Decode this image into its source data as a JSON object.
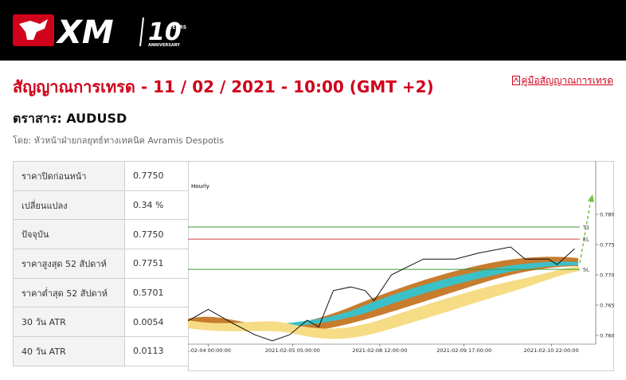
{
  "header": {
    "logo": "XM",
    "badge": "10",
    "badge_text": "YEARS",
    "badge_sub": "ANNIVERSARY"
  },
  "title": "สัญญาณการเทรด - 11 / 02 / 2021 - 10:00 (GMT +2)",
  "guide_link": "คู่มือสัญญาณการเทรด",
  "instrument": "ตราสาร: AUDUSD",
  "author": "โดย: หัวหน้าฝ่ายกลยุทธ์ทางเทคนิค Avramis Despotis",
  "table": {
    "rows": [
      [
        "ราคาปิดก่อนหน้า",
        "0.7750"
      ],
      [
        "เปลี่ยนแปลง",
        "0.34 %"
      ],
      [
        "ปัจจุบัน",
        "0.7750"
      ],
      [
        "ราคาสูงสุด 52 สัปดาห์",
        "0.7751"
      ],
      [
        "ราคาต่ำสุด 52 สัปดาห์",
        "0.5701"
      ],
      [
        "30 วัน ATR",
        "0.0054"
      ],
      [
        "40 วัน ATR",
        "0.0113"
      ]
    ]
  },
  "chart_data": {
    "type": "line",
    "annotation": "Hourly",
    "color": "#111111",
    "x": [
      -7,
      0,
      8,
      16,
      22,
      28,
      34,
      38,
      43,
      49,
      54,
      57,
      63,
      74,
      85,
      93,
      104,
      109,
      117,
      120,
      126
    ],
    "values": [
      0.7624,
      0.7643,
      0.7621,
      0.7601,
      0.7591,
      0.7601,
      0.7625,
      0.7614,
      0.7674,
      0.768,
      0.7674,
      0.7657,
      0.77,
      0.7726,
      0.7726,
      0.7736,
      0.7746,
      0.7726,
      0.7726,
      0.7717,
      0.7743
    ],
    "levels": [
      {
        "label": "T1",
        "value": 0.7779,
        "color": "#3a9a3a"
      },
      {
        "label": "EL",
        "value": 0.7759,
        "color": "#d04040"
      },
      {
        "label": "SL",
        "value": 0.7709,
        "color": "#3a9a3a"
      }
    ],
    "xlim": [
      -7,
      130
    ],
    "ylim": [
      0.759,
      0.788
    ],
    "yticks": [
      {
        "value": 0.78,
        "label": "0.7800"
      },
      {
        "value": 0.775,
        "label": "0.7750"
      },
      {
        "value": 0.77,
        "label": "0.7700"
      },
      {
        "value": 0.765,
        "label": "0.7650"
      },
      {
        "value": 0.76,
        "label": "0.7600"
      }
    ],
    "xticks": [
      {
        "value": 0,
        "label": "1-02-04 00:00:00"
      },
      {
        "value": 29,
        "label": "2021-02-05 05:00:00"
      },
      {
        "value": 59,
        "label": "2021-02-08 12:00:00"
      },
      {
        "value": 88,
        "label": "2021-02-09 17:00:00"
      },
      {
        "value": 118,
        "label": "2021-02-10 22:00:00"
      }
    ]
  }
}
